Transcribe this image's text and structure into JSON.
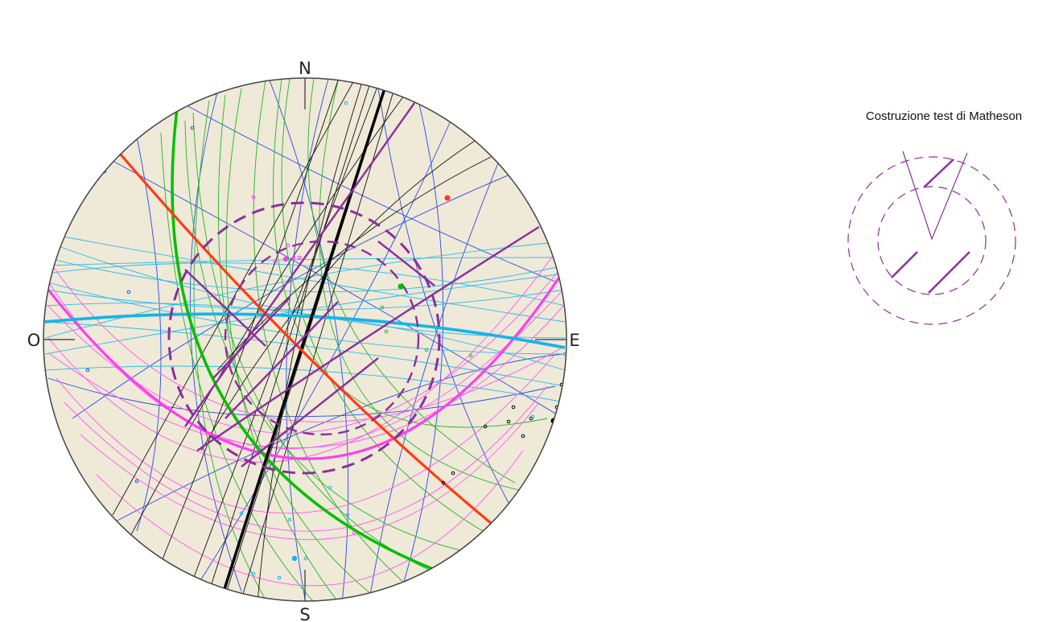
{
  "labels": {
    "north": "N",
    "south": "S",
    "east": "E",
    "west": "O"
  },
  "legend": {
    "title": "Costruzione test di Matheson"
  },
  "colors": {
    "background": "#efe9d8",
    "outline": "#444444",
    "red": "#ff3b12",
    "green": "#00c000",
    "black": "#000000",
    "cyan": "#19b3e8",
    "magenta": "#ff3df0",
    "blue": "#2b4be3",
    "purple": "#8c2e9c"
  }
}
